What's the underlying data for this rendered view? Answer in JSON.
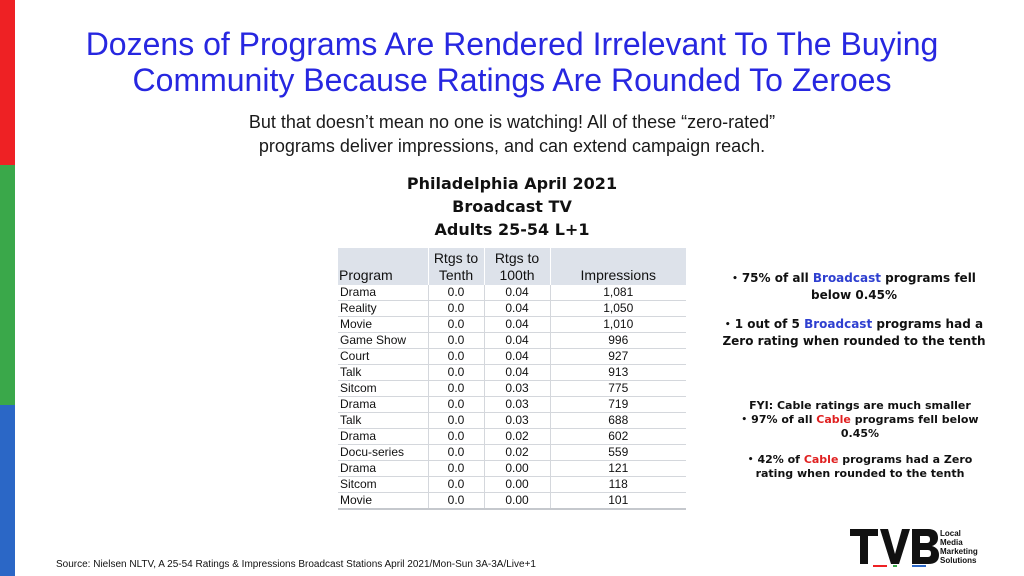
{
  "title": {
    "line1": "Dozens of Programs Are Rendered Irrelevant To The Buying",
    "line2": "Community Because Ratings Are Rounded To Zeroes"
  },
  "subtitle": {
    "line1": "But that doesn’t mean no one is watching! All of these “zero-rated”",
    "line2": "programs deliver impressions, and can extend campaign reach."
  },
  "heading": {
    "line1": "Philadelphia April 2021",
    "line2": "Broadcast TV",
    "line3": "Adults 25-54 L+1"
  },
  "table": {
    "headers": {
      "program": "Program",
      "rtgs_tenth_1": "Rtgs to",
      "rtgs_tenth_2": "Tenth",
      "rtgs_100th_1": "Rtgs to",
      "rtgs_100th_2": "100th",
      "impressions": "Impressions"
    },
    "rows": [
      {
        "program": "Drama",
        "tenth": "0.0",
        "hundredth": "0.04",
        "impressions": "1,081"
      },
      {
        "program": "Reality",
        "tenth": "0.0",
        "hundredth": "0.04",
        "impressions": "1,050"
      },
      {
        "program": "Movie",
        "tenth": "0.0",
        "hundredth": "0.04",
        "impressions": "1,010"
      },
      {
        "program": "Game Show",
        "tenth": "0.0",
        "hundredth": "0.04",
        "impressions": "996"
      },
      {
        "program": "Court",
        "tenth": "0.0",
        "hundredth": "0.04",
        "impressions": "927"
      },
      {
        "program": "Talk",
        "tenth": "0.0",
        "hundredth": "0.04",
        "impressions": "913"
      },
      {
        "program": "Sitcom",
        "tenth": "0.0",
        "hundredth": "0.03",
        "impressions": "775"
      },
      {
        "program": "Drama",
        "tenth": "0.0",
        "hundredth": "0.03",
        "impressions": "719"
      },
      {
        "program": "Talk",
        "tenth": "0.0",
        "hundredth": "0.03",
        "impressions": "688"
      },
      {
        "program": "Drama",
        "tenth": "0.0",
        "hundredth": "0.02",
        "impressions": "602"
      },
      {
        "program": "Docu-series",
        "tenth": "0.0",
        "hundredth": "0.02",
        "impressions": "559"
      },
      {
        "program": "Drama",
        "tenth": "0.0",
        "hundredth": "0.00",
        "impressions": "121"
      },
      {
        "program": "Sitcom",
        "tenth": "0.0",
        "hundredth": "0.00",
        "impressions": "118"
      },
      {
        "program": "Movie",
        "tenth": "0.0",
        "hundredth": "0.00",
        "impressions": "101"
      }
    ]
  },
  "notes": {
    "broadcast_1": {
      "pre": "75% of all ",
      "highlight": "Broadcast",
      "post": " programs fell below 0.45%"
    },
    "broadcast_2": {
      "pre": "1 out of 5 ",
      "highlight": "Broadcast",
      "post": " programs had a Zero rating when rounded to the tenth"
    },
    "fyi": "FYI: Cable ratings are much smaller",
    "cable_1": {
      "pre": "97% of all ",
      "highlight": "Cable",
      "post": " programs fell below 0.45%"
    },
    "cable_2": {
      "pre": "42% of ",
      "highlight": "Cable",
      "post": " programs had a Zero rating when rounded to the tenth"
    }
  },
  "source": "Source: Nielsen NLTV, A 25-54 Ratings & Impressions Broadcast Stations April 2021/Mon-Sun 3A-3A/Live+1",
  "logo": {
    "wordmark": "TVB",
    "tag_line1": "Local",
    "tag_line2": "Media",
    "tag_line3": "Marketing",
    "tag_line4": "Solutions"
  },
  "colors": {
    "title": "#2727e0",
    "broadcast_highlight": "#2e3fd0",
    "cable_highlight": "#e02020",
    "stripe_red": "#ee2124",
    "stripe_green": "#3aa84a",
    "stripe_blue": "#2b67c6"
  }
}
